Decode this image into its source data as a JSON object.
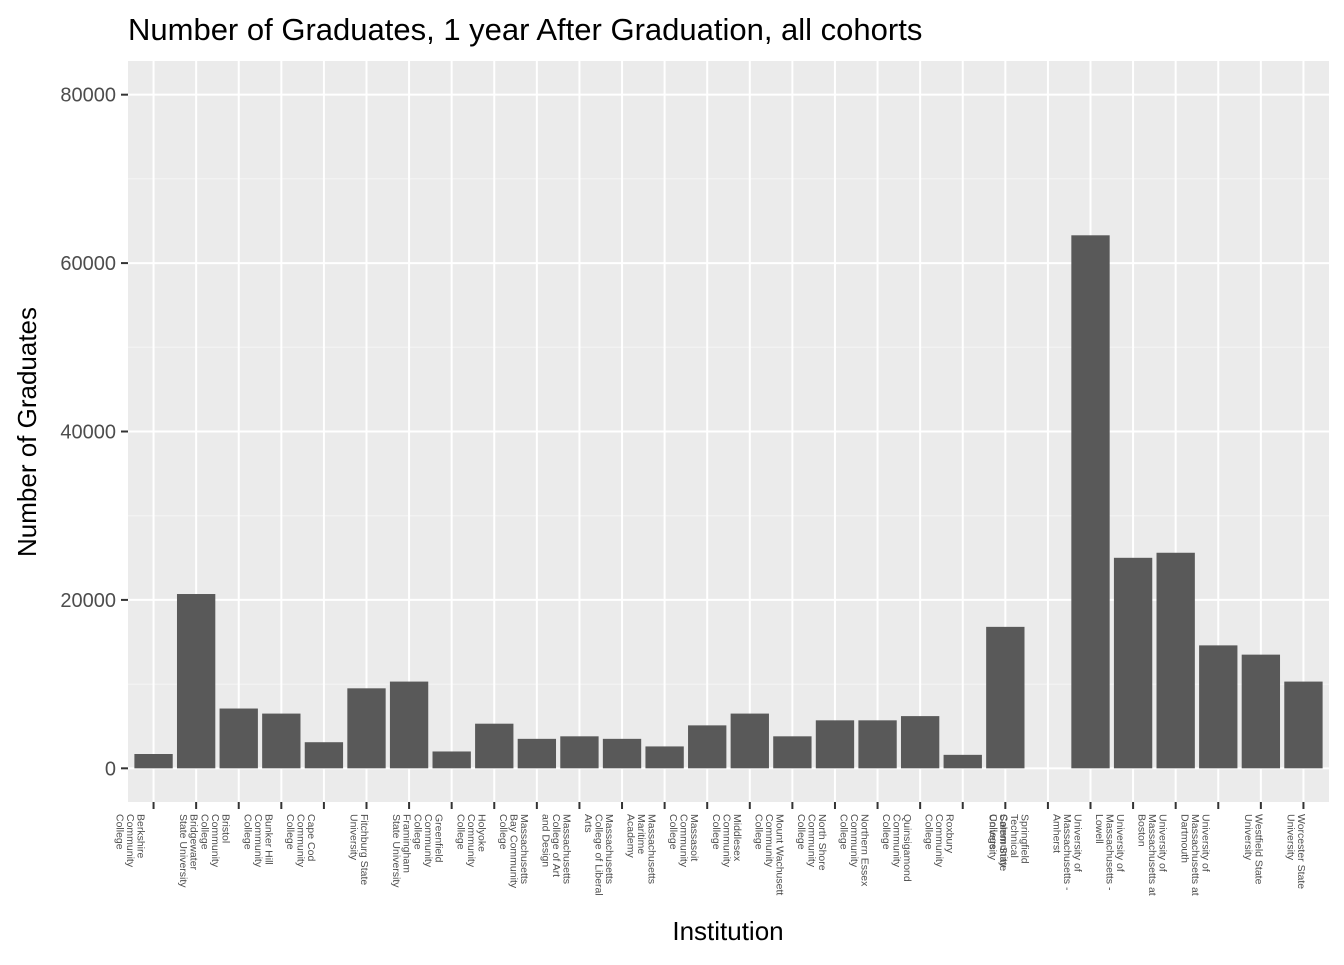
{
  "chart_data": {
    "type": "bar",
    "title": "Number of Graduates, 1 year After Graduation, all cohorts",
    "xlabel": "Institution",
    "ylabel": "Number of Graduates",
    "ylim": [
      -4000,
      84000
    ],
    "yticks": [
      0,
      20000,
      40000,
      60000,
      80000
    ],
    "ytick_labels": [
      "0",
      "20000",
      "40000",
      "60000",
      "80000"
    ],
    "grid": true,
    "legend": "none",
    "colors": {
      "panel": "#ebebeb",
      "grid_major": "#ffffff",
      "grid_minor": "#f5f5f5",
      "bar": "#595959",
      "tick": "#333333",
      "text": "#4d4d4d"
    },
    "categories": [
      [
        "Berkshire",
        "Community",
        "College"
      ],
      [
        "Bridgewater",
        "State University"
      ],
      [
        "Bristol",
        "Community",
        "College"
      ],
      [
        "Bunker Hill",
        "Community",
        "College"
      ],
      [
        "Cape Cod",
        "Community",
        "College"
      ],
      [
        "Fitchburg State",
        "University"
      ],
      [
        "Framingham",
        "State University"
      ],
      [
        "Greenfield",
        "Community",
        "College"
      ],
      [
        "Holyoke",
        "Community",
        "College"
      ],
      [
        "Massachusetts",
        "Bay Community",
        "College"
      ],
      [
        "Massachusetts",
        "College of Art",
        "and Design"
      ],
      [
        "Massachusetts",
        "College of Liberal",
        "Arts"
      ],
      [
        "Massachusetts",
        "Maritime",
        "Academy"
      ],
      [
        "Massasoit",
        "Community",
        "College"
      ],
      [
        "Middlesex",
        "Community",
        "College"
      ],
      [
        "Mount Wachusett",
        "Community",
        "College"
      ],
      [
        "North Shore",
        "Community",
        "College"
      ],
      [
        "Northern Essex",
        "Community",
        "College"
      ],
      [
        "Quinsigamond",
        "Community",
        "College"
      ],
      [
        "Roxbury",
        "Community",
        "College"
      ],
      [
        "Salem State",
        "University"
      ],
      [
        "Springfield",
        "Technical",
        "Community",
        "College"
      ],
      [
        "University of",
        "Massachusetts -",
        "Amherst"
      ],
      [
        "University of",
        "Massachusetts -",
        "Lowell"
      ],
      [
        "University of",
        "Massachusetts at",
        "Boston"
      ],
      [
        "University of",
        "Massachusetts at",
        "Dartmouth"
      ],
      [
        "Westfield State",
        "University"
      ],
      [
        "Worcester State",
        "University"
      ]
    ],
    "values": [
      1700,
      20700,
      7100,
      6500,
      3100,
      9500,
      10300,
      2000,
      5300,
      3500,
      3800,
      3500,
      2600,
      5100,
      6500,
      3800,
      5700,
      5700,
      6200,
      1600,
      16800,
      0,
      63300,
      25000,
      25600,
      14600,
      13500,
      10300
    ]
  }
}
